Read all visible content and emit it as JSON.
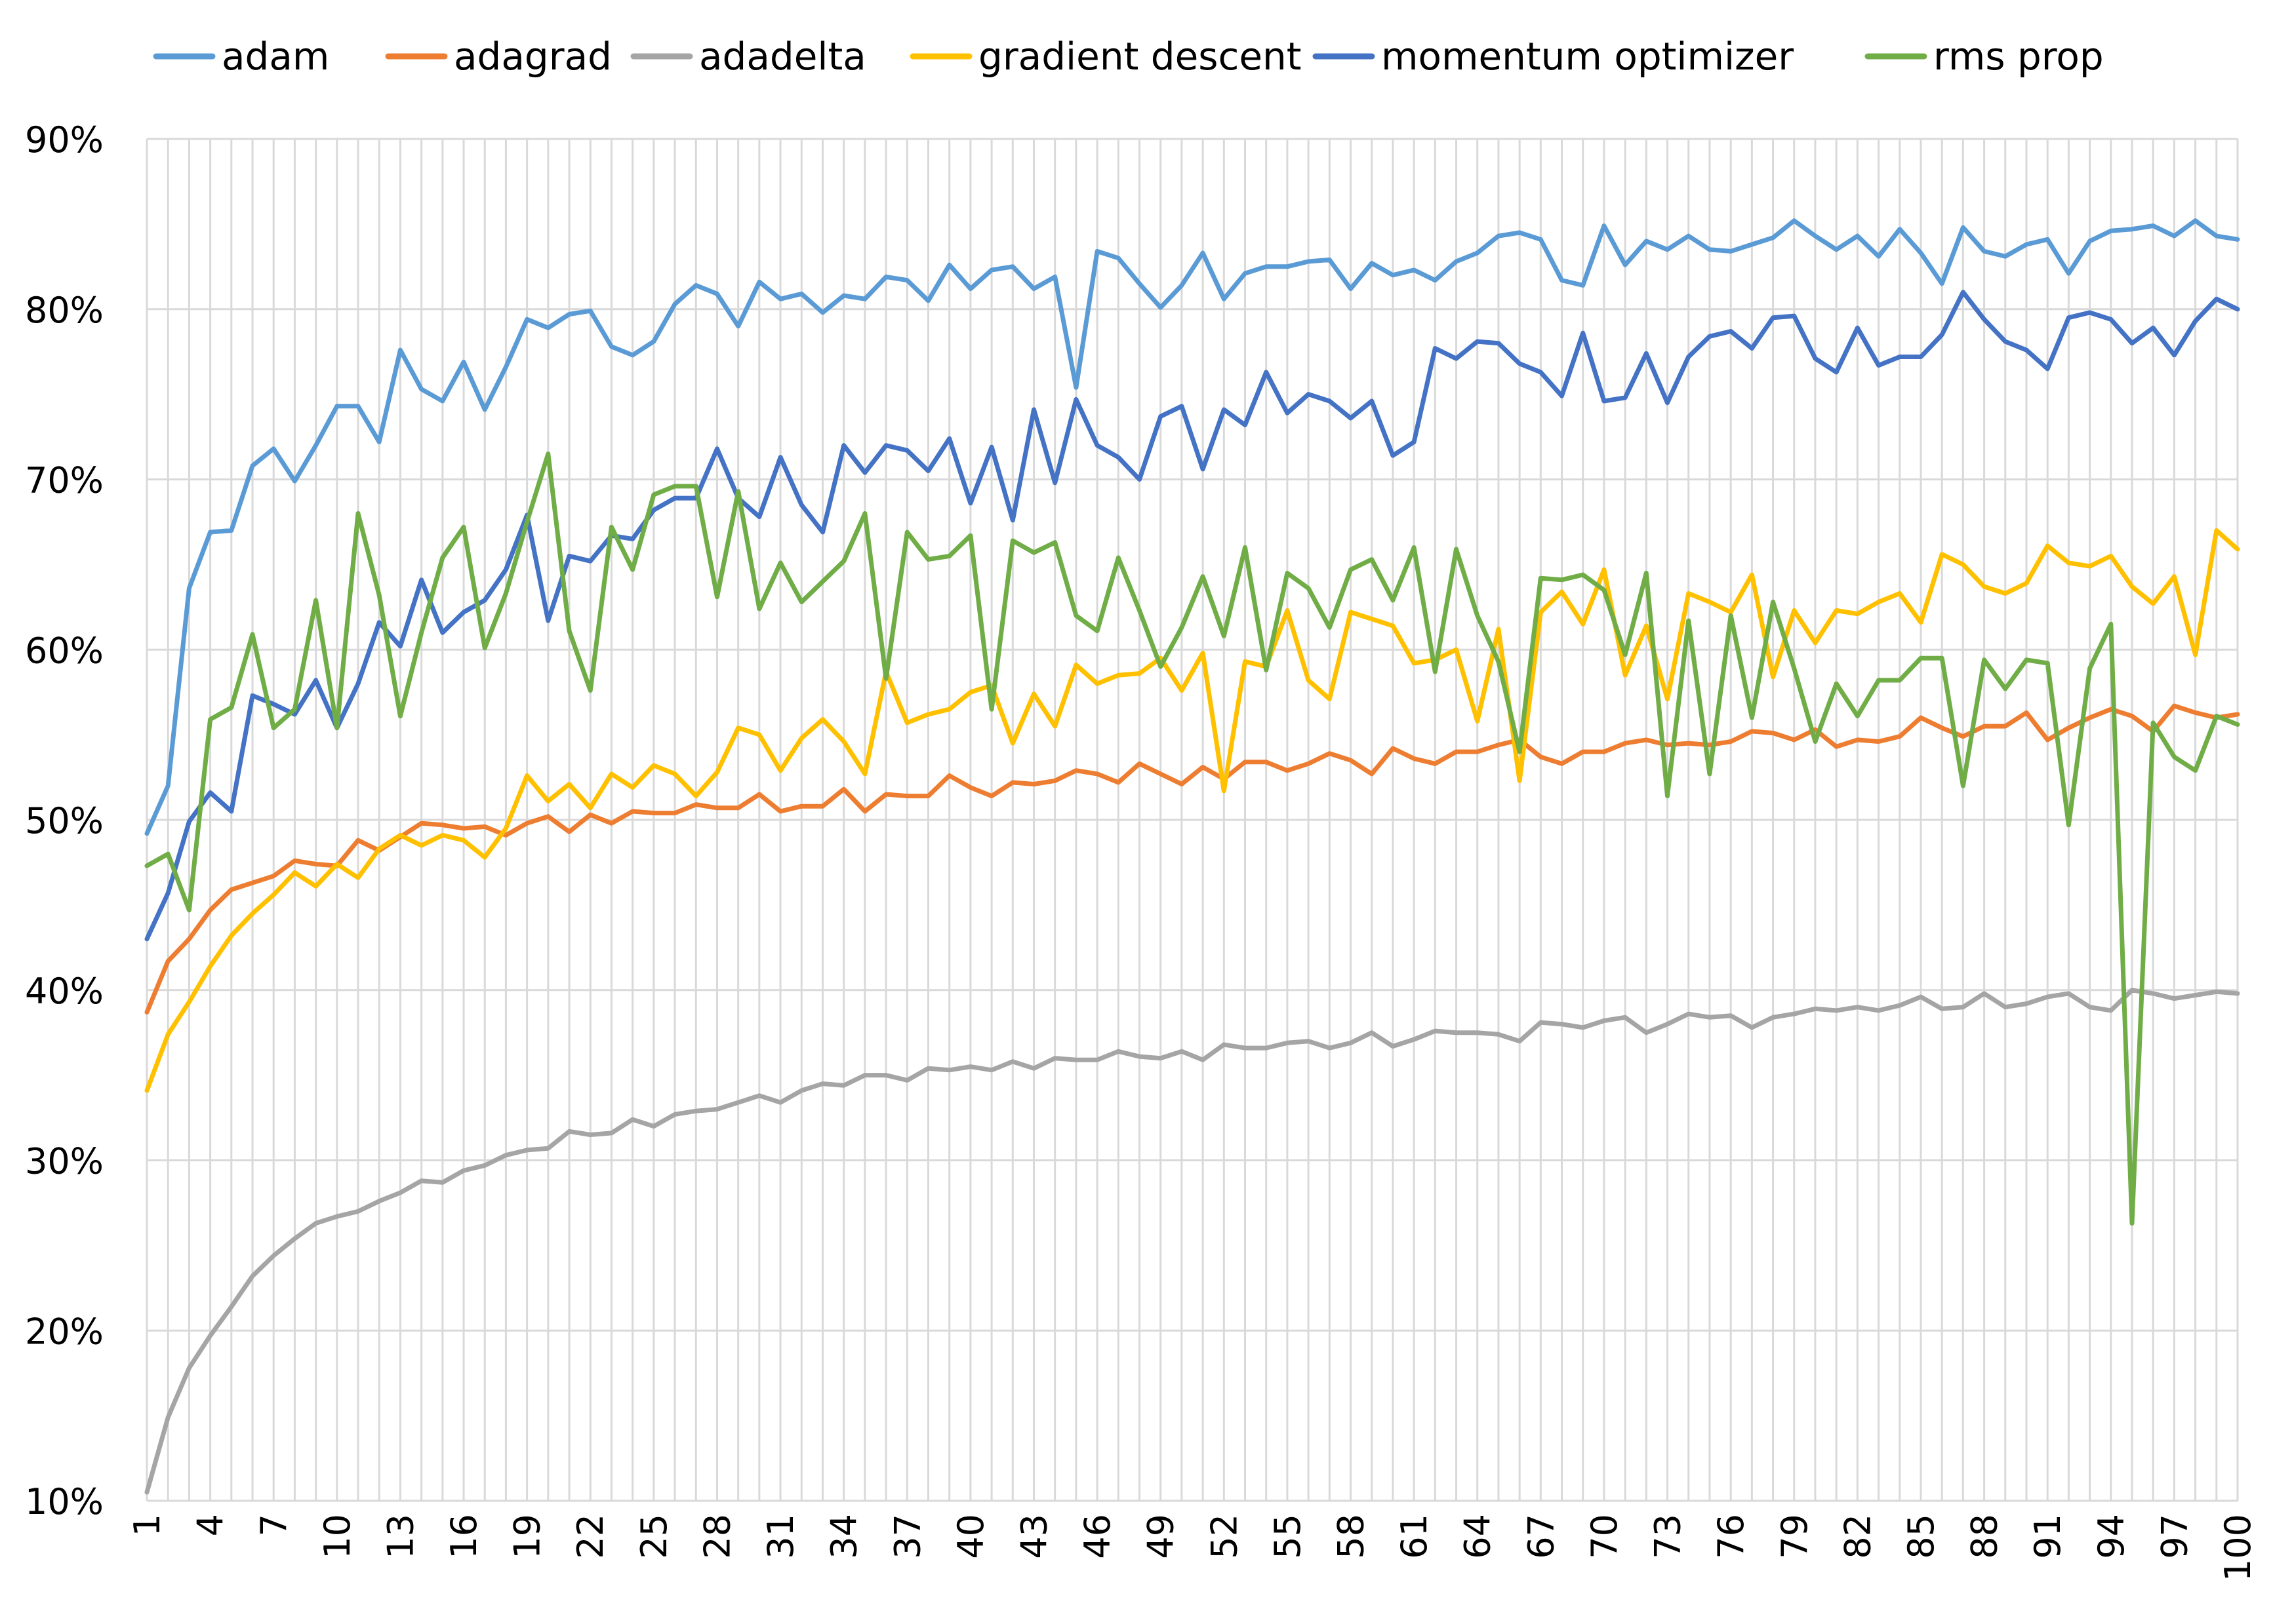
{
  "chart_data": {
    "type": "line",
    "title": "",
    "xlabel": "",
    "ylabel": "",
    "x": [
      1,
      2,
      3,
      4,
      5,
      6,
      7,
      8,
      9,
      10,
      11,
      12,
      13,
      14,
      15,
      16,
      17,
      18,
      19,
      20,
      21,
      22,
      23,
      24,
      25,
      26,
      27,
      28,
      29,
      30,
      31,
      32,
      33,
      34,
      35,
      36,
      37,
      38,
      39,
      40,
      41,
      42,
      43,
      44,
      45,
      46,
      47,
      48,
      49,
      50,
      51,
      52,
      53,
      54,
      55,
      56,
      57,
      58,
      59,
      60,
      61,
      62,
      63,
      64,
      65,
      66,
      67,
      68,
      69,
      70,
      71,
      72,
      73,
      74,
      75,
      76,
      77,
      78,
      79,
      80,
      81,
      82,
      83,
      84,
      85,
      86,
      87,
      88,
      89,
      90,
      91,
      92,
      93,
      94,
      95,
      96,
      97,
      98,
      99,
      100
    ],
    "x_tick_values": [
      1,
      4,
      7,
      10,
      13,
      16,
      19,
      22,
      25,
      28,
      31,
      34,
      37,
      40,
      43,
      46,
      49,
      52,
      55,
      58,
      61,
      64,
      67,
      70,
      73,
      76,
      79,
      82,
      85,
      88,
      91,
      94,
      97,
      100
    ],
    "x_tick_labels": [
      "1",
      "4",
      "7",
      "10",
      "13",
      "16",
      "19",
      "22",
      "25",
      "28",
      "31",
      "34",
      "37",
      "40",
      "43",
      "46",
      "49",
      "52",
      "55",
      "58",
      "61",
      "64",
      "67",
      "70",
      "73",
      "76",
      "79",
      "82",
      "85",
      "88",
      "91",
      "94",
      "97",
      "100"
    ],
    "ylim": [
      0.1,
      0.9
    ],
    "y_tick_values": [
      0.1,
      0.2,
      0.3,
      0.4,
      0.5,
      0.6,
      0.7,
      0.8,
      0.9
    ],
    "y_tick_labels": [
      "10%",
      "20%",
      "30%",
      "40%",
      "50%",
      "60%",
      "70%",
      "80%",
      "90%"
    ],
    "grid": true,
    "legend_position": "top",
    "series": [
      {
        "name": "adam",
        "color": "#5b9bd5",
        "values": [
          0.492,
          0.52,
          0.636,
          0.669,
          0.67,
          0.708,
          0.718,
          0.699,
          0.72,
          0.743,
          0.743,
          0.722,
          0.776,
          0.753,
          0.746,
          0.769,
          0.741,
          0.766,
          0.794,
          0.789,
          0.797,
          0.799,
          0.778,
          0.773,
          0.781,
          0.803,
          0.814,
          0.809,
          0.79,
          0.816,
          0.806,
          0.809,
          0.798,
          0.808,
          0.806,
          0.819,
          0.817,
          0.805,
          0.826,
          0.812,
          0.823,
          0.825,
          0.812,
          0.819,
          0.754,
          0.834,
          0.83,
          0.815,
          0.801,
          0.814,
          0.833,
          0.806,
          0.821,
          0.825,
          0.825,
          0.828,
          0.829,
          0.812,
          0.827,
          0.82,
          0.823,
          0.817,
          0.828,
          0.833,
          0.843,
          0.845,
          0.841,
          0.817,
          0.814,
          0.849,
          0.826,
          0.84,
          0.835,
          0.843,
          0.835,
          0.834,
          0.838,
          0.842,
          0.852,
          0.843,
          0.835,
          0.843,
          0.831,
          0.847,
          0.833,
          0.815,
          0.848,
          0.834,
          0.831,
          0.838,
          0.841,
          0.821,
          0.84,
          0.846,
          0.847,
          0.849,
          0.843,
          0.852,
          0.843,
          0.841
        ]
      },
      {
        "name": "adagrad",
        "color": "#ed7d31",
        "values": [
          0.387,
          0.417,
          0.43,
          0.447,
          0.459,
          0.463,
          0.467,
          0.476,
          0.474,
          0.473,
          0.488,
          0.482,
          0.49,
          0.498,
          0.497,
          0.495,
          0.496,
          0.491,
          0.498,
          0.502,
          0.493,
          0.503,
          0.498,
          0.505,
          0.504,
          0.504,
          0.509,
          0.507,
          0.507,
          0.515,
          0.505,
          0.508,
          0.508,
          0.518,
          0.505,
          0.515,
          0.514,
          0.514,
          0.526,
          0.519,
          0.514,
          0.522,
          0.521,
          0.523,
          0.529,
          0.527,
          0.522,
          0.533,
          0.527,
          0.521,
          0.531,
          0.524,
          0.534,
          0.534,
          0.529,
          0.533,
          0.539,
          0.535,
          0.527,
          0.542,
          0.536,
          0.533,
          0.54,
          0.54,
          0.544,
          0.547,
          0.537,
          0.533,
          0.54,
          0.54,
          0.545,
          0.547,
          0.544,
          0.545,
          0.544,
          0.546,
          0.552,
          0.551,
          0.547,
          0.553,
          0.543,
          0.547,
          0.546,
          0.549,
          0.56,
          0.554,
          0.549,
          0.555,
          0.555,
          0.563,
          0.547,
          0.554,
          0.56,
          0.565,
          0.561,
          0.552,
          0.567,
          0.563,
          0.56,
          0.562
        ]
      },
      {
        "name": "adadelta",
        "color": "#a5a5a5",
        "values": [
          0.105,
          0.149,
          0.178,
          0.197,
          0.214,
          0.232,
          0.244,
          0.254,
          0.263,
          0.267,
          0.27,
          0.276,
          0.281,
          0.288,
          0.287,
          0.294,
          0.297,
          0.303,
          0.306,
          0.307,
          0.317,
          0.315,
          0.316,
          0.324,
          0.32,
          0.327,
          0.329,
          0.33,
          0.334,
          0.338,
          0.334,
          0.341,
          0.345,
          0.344,
          0.35,
          0.35,
          0.347,
          0.354,
          0.353,
          0.355,
          0.353,
          0.358,
          0.354,
          0.36,
          0.359,
          0.359,
          0.364,
          0.361,
          0.36,
          0.364,
          0.359,
          0.368,
          0.366,
          0.366,
          0.369,
          0.37,
          0.366,
          0.369,
          0.375,
          0.367,
          0.371,
          0.376,
          0.375,
          0.375,
          0.374,
          0.37,
          0.381,
          0.38,
          0.378,
          0.382,
          0.384,
          0.375,
          0.38,
          0.386,
          0.384,
          0.385,
          0.378,
          0.384,
          0.386,
          0.389,
          0.388,
          0.39,
          0.388,
          0.391,
          0.396,
          0.389,
          0.39,
          0.398,
          0.39,
          0.392,
          0.396,
          0.398,
          0.39,
          0.388,
          0.4,
          0.398,
          0.395,
          0.397,
          0.399,
          0.398
        ]
      },
      {
        "name": "gradient descent",
        "color": "#ffc000",
        "values": [
          0.341,
          0.374,
          0.393,
          0.414,
          0.432,
          0.445,
          0.456,
          0.469,
          0.461,
          0.474,
          0.466,
          0.483,
          0.491,
          0.485,
          0.491,
          0.488,
          0.478,
          0.495,
          0.526,
          0.511,
          0.521,
          0.507,
          0.527,
          0.519,
          0.532,
          0.527,
          0.514,
          0.528,
          0.554,
          0.55,
          0.529,
          0.548,
          0.559,
          0.546,
          0.527,
          0.587,
          0.557,
          0.562,
          0.565,
          0.575,
          0.579,
          0.545,
          0.574,
          0.555,
          0.591,
          0.58,
          0.585,
          0.586,
          0.595,
          0.576,
          0.598,
          0.517,
          0.593,
          0.59,
          0.623,
          0.582,
          0.571,
          0.622,
          0.618,
          0.614,
          0.592,
          0.594,
          0.6,
          0.558,
          0.612,
          0.523,
          0.622,
          0.634,
          0.615,
          0.647,
          0.585,
          0.614,
          0.571,
          0.633,
          0.628,
          0.622,
          0.644,
          0.584,
          0.623,
          0.604,
          0.623,
          0.621,
          0.628,
          0.633,
          0.616,
          0.656,
          0.65,
          0.637,
          0.633,
          0.639,
          0.661,
          0.651,
          0.649,
          0.655,
          0.637,
          0.627,
          0.643,
          0.597,
          0.67,
          0.659
        ]
      },
      {
        "name": "momentum optimizer",
        "color": "#4472c4",
        "values": [
          0.43,
          0.457,
          0.499,
          0.516,
          0.505,
          0.573,
          0.568,
          0.562,
          0.582,
          0.554,
          0.58,
          0.616,
          0.602,
          0.641,
          0.61,
          0.622,
          0.629,
          0.647,
          0.679,
          0.617,
          0.655,
          0.652,
          0.667,
          0.665,
          0.682,
          0.689,
          0.689,
          0.718,
          0.689,
          0.678,
          0.713,
          0.685,
          0.669,
          0.72,
          0.704,
          0.72,
          0.717,
          0.705,
          0.724,
          0.686,
          0.719,
          0.676,
          0.741,
          0.698,
          0.747,
          0.72,
          0.713,
          0.7,
          0.737,
          0.743,
          0.706,
          0.741,
          0.732,
          0.763,
          0.739,
          0.75,
          0.746,
          0.736,
          0.746,
          0.714,
          0.722,
          0.777,
          0.771,
          0.781,
          0.78,
          0.768,
          0.763,
          0.749,
          0.786,
          0.746,
          0.748,
          0.774,
          0.745,
          0.772,
          0.784,
          0.787,
          0.777,
          0.795,
          0.796,
          0.771,
          0.763,
          0.789,
          0.767,
          0.772,
          0.772,
          0.785,
          0.81,
          0.794,
          0.781,
          0.776,
          0.765,
          0.795,
          0.798,
          0.794,
          0.78,
          0.789,
          0.773,
          0.793,
          0.806,
          0.8
        ]
      },
      {
        "name": "rms prop",
        "color": "#70ad47",
        "values": [
          0.473,
          0.48,
          0.447,
          0.559,
          0.566,
          0.609,
          0.554,
          0.565,
          0.629,
          0.554,
          0.68,
          0.632,
          0.561,
          0.61,
          0.654,
          0.672,
          0.601,
          0.633,
          0.675,
          0.715,
          0.611,
          0.576,
          0.672,
          0.647,
          0.691,
          0.696,
          0.696,
          0.631,
          0.693,
          0.624,
          0.651,
          0.628,
          0.64,
          0.652,
          0.68,
          0.583,
          0.669,
          0.653,
          0.655,
          0.667,
          0.565,
          0.664,
          0.657,
          0.663,
          0.62,
          0.611,
          0.654,
          0.623,
          0.59,
          0.613,
          0.643,
          0.608,
          0.66,
          0.588,
          0.645,
          0.636,
          0.613,
          0.647,
          0.653,
          0.629,
          0.66,
          0.587,
          0.659,
          0.62,
          0.593,
          0.54,
          0.642,
          0.641,
          0.644,
          0.635,
          0.597,
          0.645,
          0.514,
          0.617,
          0.527,
          0.62,
          0.56,
          0.628,
          0.589,
          0.546,
          0.58,
          0.561,
          0.582,
          0.582,
          0.595,
          0.595,
          0.52,
          0.594,
          0.577,
          0.594,
          0.592,
          0.497,
          0.589,
          0.615,
          0.263,
          0.557,
          0.537,
          0.529,
          0.561,
          0.556
        ]
      }
    ]
  }
}
